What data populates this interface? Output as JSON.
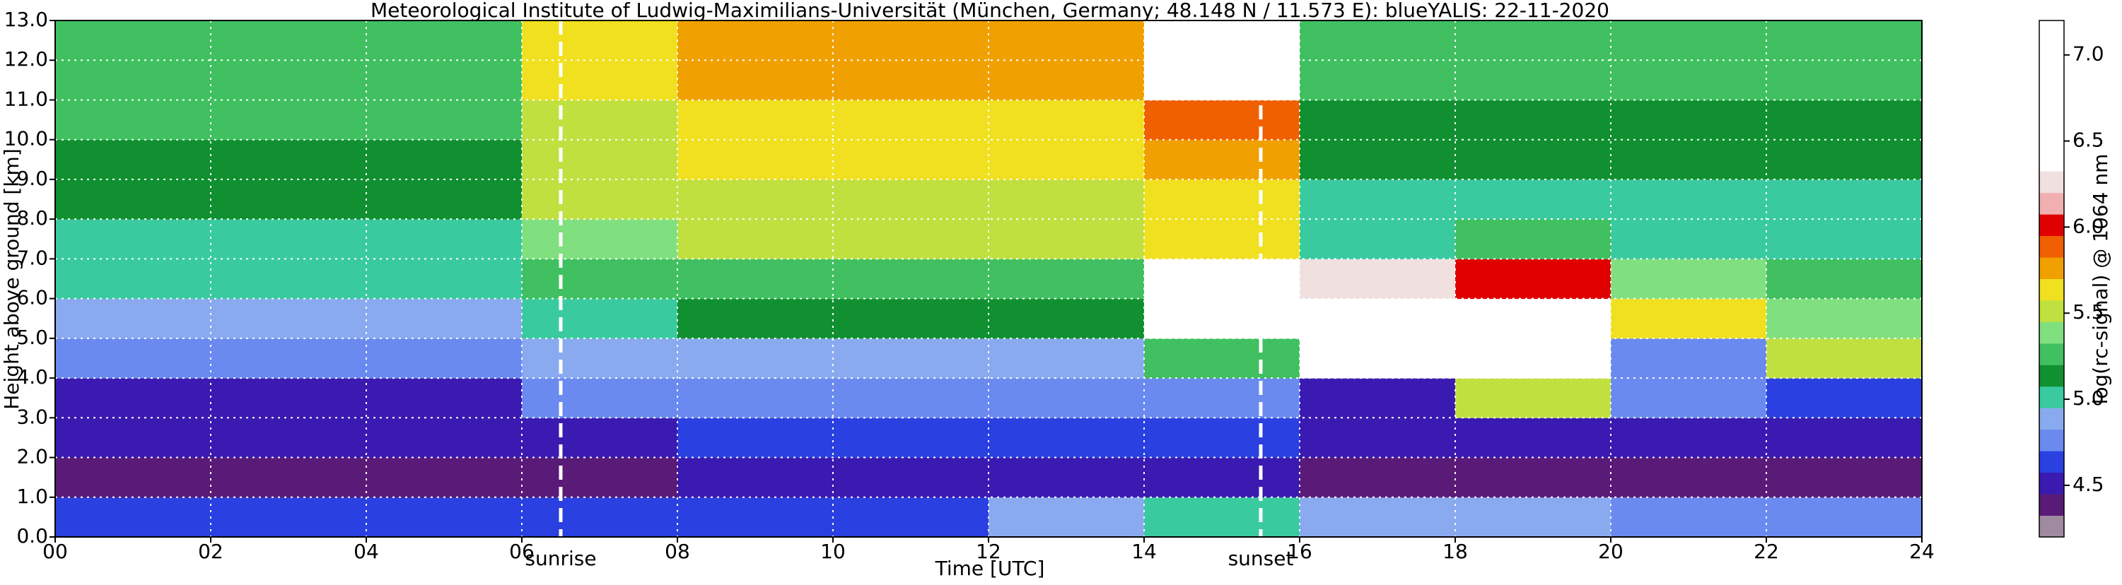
{
  "chart_data": {
    "type": "heatmap",
    "title": "Meteorological Institute of Ludwig-Maximilians-Universität (München, Germany; 48.148 N / 11.573 E):    blueYALIS: 22-11-2020",
    "x_label": "Time [UTC]",
    "y_label": "Height above ground [km]",
    "colorbar_label": "log(rc-signal) @ 1064 nm",
    "xlim": [
      0,
      24
    ],
    "xticks": [
      {
        "value": 0,
        "label": "00"
      },
      {
        "value": 2,
        "label": "02"
      },
      {
        "value": 4,
        "label": "04"
      },
      {
        "value": 6,
        "label": "06"
      },
      {
        "value": 8,
        "label": "08"
      },
      {
        "value": 10,
        "label": "10"
      },
      {
        "value": 12,
        "label": "12"
      },
      {
        "value": 14,
        "label": "14"
      },
      {
        "value": 16,
        "label": "16"
      },
      {
        "value": 18,
        "label": "18"
      },
      {
        "value": 20,
        "label": "20"
      },
      {
        "value": 22,
        "label": "22"
      },
      {
        "value": 24,
        "label": "24"
      }
    ],
    "ylim": [
      0,
      13
    ],
    "yticks": [
      {
        "value": 0,
        "label": "0.0"
      },
      {
        "value": 1,
        "label": "1.0"
      },
      {
        "value": 2,
        "label": "2.0"
      },
      {
        "value": 3,
        "label": "3.0"
      },
      {
        "value": 4,
        "label": "4.0"
      },
      {
        "value": 5,
        "label": "5.0"
      },
      {
        "value": 6,
        "label": "6.0"
      },
      {
        "value": 7,
        "label": "7.0"
      },
      {
        "value": 8,
        "label": "8.0"
      },
      {
        "value": 9,
        "label": "9.0"
      },
      {
        "value": 10,
        "label": "10.0"
      },
      {
        "value": 11,
        "label": "11.0"
      },
      {
        "value": 12,
        "label": "12.0"
      },
      {
        "value": 13,
        "label": "13.0"
      }
    ],
    "grid": true,
    "x_bins": [
      0,
      2,
      4,
      6,
      8,
      10,
      12,
      14,
      16,
      18,
      20,
      22,
      24
    ],
    "y_bins": [
      0,
      1,
      2,
      3,
      4,
      5,
      6,
      7,
      8,
      9,
      10,
      11,
      12,
      13
    ],
    "z": [
      [
        4.6,
        4.6,
        4.6,
        4.6,
        4.6,
        4.6,
        4.9,
        5.0,
        4.9,
        4.9,
        4.8,
        4.7
      ],
      [
        4.35,
        4.35,
        4.35,
        4.4,
        4.45,
        4.45,
        4.45,
        4.5,
        4.4,
        4.4,
        4.4,
        4.35
      ],
      [
        4.45,
        4.45,
        4.45,
        4.55,
        4.6,
        4.6,
        4.6,
        4.6,
        4.45,
        4.45,
        4.45,
        4.45
      ],
      [
        4.55,
        4.55,
        4.55,
        4.7,
        4.75,
        4.75,
        4.75,
        4.8,
        4.5,
        5.5,
        4.8,
        4.6
      ],
      [
        4.7,
        4.7,
        4.7,
        4.85,
        4.9,
        4.9,
        4.9,
        5.2,
        6.8,
        6.6,
        4.8,
        5.5
      ],
      [
        4.85,
        4.85,
        4.85,
        5.0,
        5.1,
        5.1,
        5.1,
        6.6,
        6.9,
        6.5,
        5.6,
        5.4
      ],
      [
        4.95,
        4.95,
        4.95,
        5.2,
        5.3,
        5.3,
        5.3,
        6.8,
        6.3,
        6.0,
        5.4,
        5.3
      ],
      [
        5.05,
        5.05,
        5.05,
        5.35,
        5.45,
        5.45,
        5.45,
        5.6,
        5.0,
        5.3,
        5.0,
        5.0
      ],
      [
        5.1,
        5.1,
        5.1,
        5.45,
        5.55,
        5.55,
        5.55,
        5.6,
        5.05,
        5.05,
        5.05,
        5.05
      ],
      [
        5.15,
        5.15,
        5.15,
        5.5,
        5.6,
        5.6,
        5.6,
        5.7,
        5.1,
        5.1,
        5.1,
        5.1
      ],
      [
        5.2,
        5.2,
        5.2,
        5.55,
        5.65,
        5.65,
        5.65,
        5.9,
        5.15,
        5.15,
        5.15,
        5.15
      ],
      [
        5.25,
        5.25,
        5.25,
        5.6,
        5.7,
        5.7,
        5.7,
        6.4,
        5.2,
        5.2,
        5.2,
        5.2
      ],
      [
        5.3,
        5.3,
        5.3,
        5.65,
        5.75,
        5.75,
        5.75,
        6.6,
        5.25,
        5.25,
        5.25,
        5.25
      ]
    ],
    "zlim": [
      4.2,
      7.2
    ],
    "zticks": [
      4.5,
      {
        "value": 5,
        "label": "5.0"
      },
      5.5,
      {
        "value": 6,
        "label": "6.0"
      },
      6.5,
      {
        "value": 7,
        "label": "7.0"
      }
    ],
    "colormap": [
      "#a08aa0",
      "#5a1a78",
      "#3a1ab0",
      "#2a40e0",
      "#6a8af0",
      "#8aaaf0",
      "#3acaa0",
      "#109030",
      "#40c060",
      "#80e080",
      "#c0e040",
      "#f0e020",
      "#f0a000",
      "#f06000",
      "#e00000",
      "#f0b0b0",
      "#f0e0e0",
      "#ffffff",
      "#ffffff",
      "#ffffff",
      "#ffffff",
      "#ffffff",
      "#ffffff",
      "#ffffff"
    ],
    "annotations": [
      {
        "text": "sunrise",
        "x": 6.5
      },
      {
        "text": "sunset",
        "x": 15.5
      }
    ]
  }
}
